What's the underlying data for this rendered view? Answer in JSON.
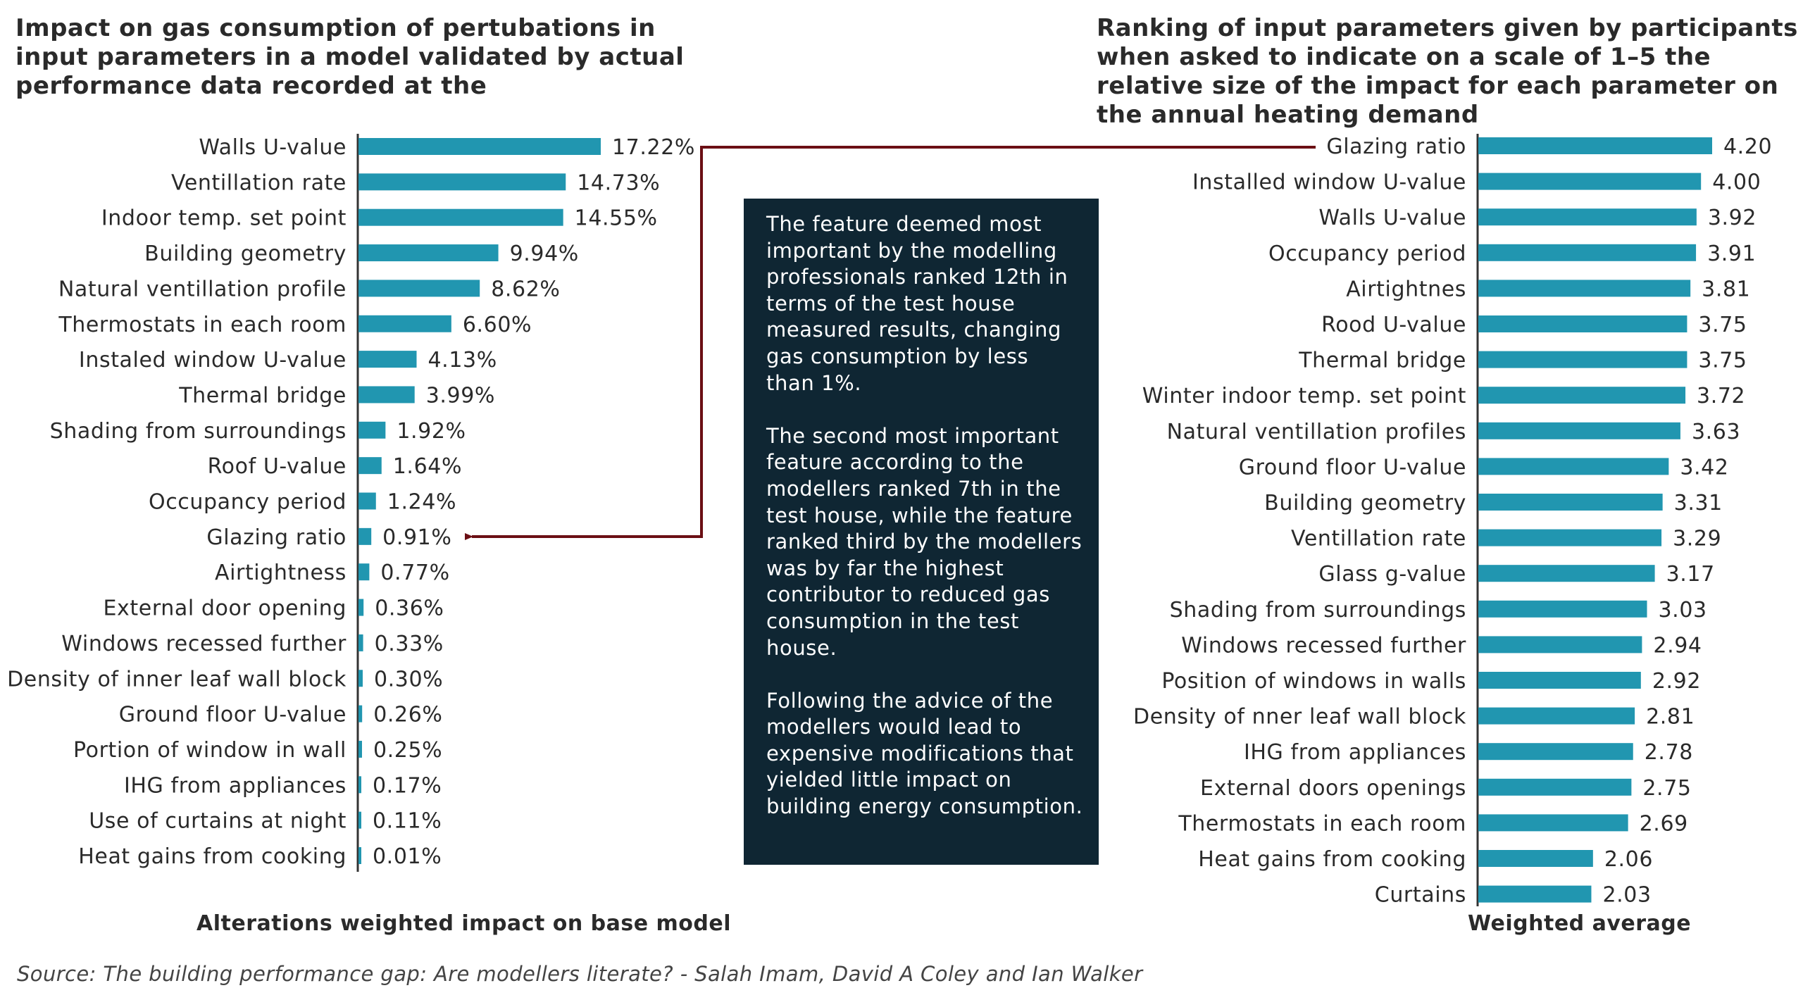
{
  "colors": {
    "bar": "#2196b0",
    "axis": "#333333",
    "arrow": "#6b0f14",
    "callout_bg": "#0f2633",
    "callout_text": "#ffffff"
  },
  "titles": {
    "left": "Impact on gas consumption of pertubations in input parameters in a model validated by actual performance data recorded at the",
    "right": "Ranking of input parameters given by participants when asked to indicate on a scale of 1–5 the relative size of the impact for each parameter on the annual heating demand"
  },
  "callout": {
    "paragraphs": [
      "The feature deemed most important by the modelling professionals ranked 12th in terms of the test house measured results, changing gas consumption by less than 1%.",
      "The second most important feature according to the modellers ranked 7th in the test house, while the feature ranked third by the modellers was by far the highest contributor to reduced gas consumption in the test house.",
      "Following the advice of the modellers would lead to expensive modifications that yielded little impact on building energy consumption."
    ]
  },
  "source": "Source: The building performance gap: Are modellers literate? - Salah Imam, David A Coley and Ian Walker",
  "chart_data": [
    {
      "type": "bar",
      "orientation": "horizontal",
      "title": "Impact on gas consumption of pertubations in input parameters in a model validated by actual performance data recorded at the",
      "xlabel": "Alterations weighted impact on base model",
      "categories": [
        "Walls U-value",
        "Ventillation rate",
        "Indoor temp. set point",
        "Building geometry",
        "Natural ventillation profile",
        "Thermostats in each room",
        "Instaled window U-value",
        "Thermal bridge",
        "Shading from surroundings",
        "Roof U-value",
        "Occupancy period",
        "Glazing ratio",
        "Airtightness",
        "External door opening",
        "Windows recessed further",
        "Density of inner leaf wall block",
        "Ground floor U-value",
        "Portion of window in wall",
        "IHG from appliances",
        "Use of curtains at night",
        "Heat gains from cooking"
      ],
      "values": [
        17.22,
        14.73,
        14.55,
        9.94,
        8.62,
        6.6,
        4.13,
        3.99,
        1.92,
        1.64,
        1.24,
        0.91,
        0.77,
        0.36,
        0.33,
        0.3,
        0.26,
        0.25,
        0.17,
        0.11,
        0.01
      ],
      "data_labels": [
        "17.22%",
        "14.73%",
        "14.55%",
        "9.94%",
        "8.62%",
        "6.60%",
        "4.13%",
        "3.99%",
        "1.92%",
        "1.64%",
        "1.24%",
        "0.91%",
        "0.77%",
        "0.36%",
        "0.33%",
        "0.30%",
        "0.26%",
        "0.25%",
        "0.17%",
        "0.11%",
        "0.01%"
      ],
      "xlim": [
        0,
        17.22
      ],
      "grid": false
    },
    {
      "type": "bar",
      "orientation": "horizontal",
      "title": "Ranking of input parameters given by participants when asked to indicate on a scale of 1–5 the relative size of the impact for each parameter on the annual heating demand",
      "xlabel": "Weighted average",
      "categories": [
        "Glazing ratio",
        "Installed window U-value",
        "Walls U-value",
        "Occupancy period",
        "Airtightnes",
        "Rood U-value",
        "Thermal bridge",
        "Winter indoor temp. set point",
        "Natural ventillation profiles",
        "Ground floor U-value",
        "Building geometry",
        "Ventillation rate",
        "Glass g-value",
        "Shading from surroundings",
        "Windows recessed further",
        "Position of windows in walls",
        "Density of nner leaf wall block",
        "IHG from appliances",
        "External doors openings",
        "Thermostats in each room",
        "Heat gains from cooking",
        "Curtains"
      ],
      "values": [
        4.2,
        4.0,
        3.92,
        3.91,
        3.81,
        3.75,
        3.75,
        3.72,
        3.63,
        3.42,
        3.31,
        3.29,
        3.17,
        3.03,
        2.94,
        2.92,
        2.81,
        2.78,
        2.75,
        2.69,
        2.06,
        2.03
      ],
      "data_labels": [
        "4.20",
        "4.00",
        "3.92",
        "3.91",
        "3.81",
        "3.75",
        "3.75",
        "3.72",
        "3.63",
        "3.42",
        "3.31",
        "3.29",
        "3.17",
        "3.03",
        "2.94",
        "2.92",
        "2.81",
        "2.78",
        "2.75",
        "2.69",
        "2.06",
        "2.03"
      ],
      "xlim": [
        0,
        4.2
      ],
      "grid": false
    }
  ]
}
